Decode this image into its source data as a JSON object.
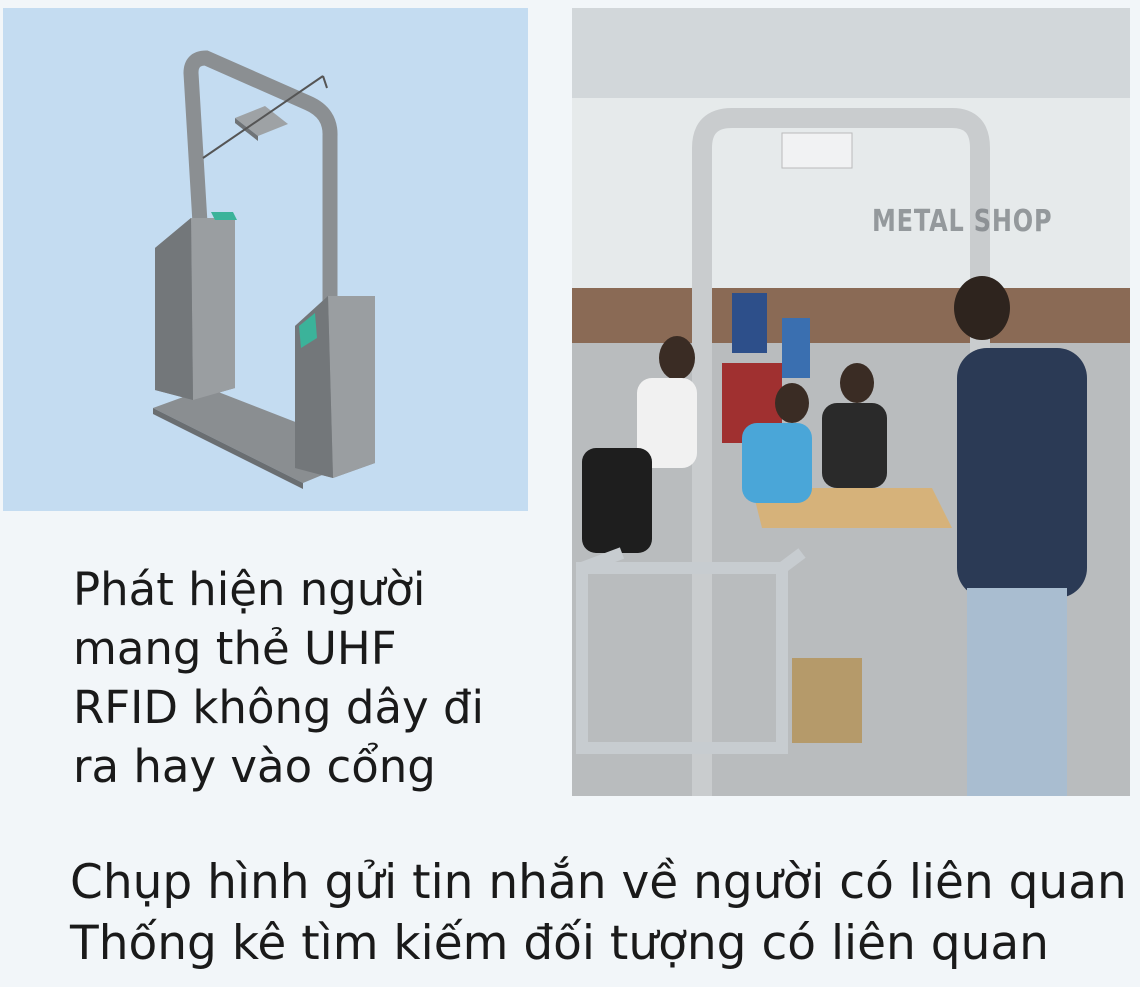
{
  "description_lines": [
    "Phát hiện người",
    "mang thẻ UHF",
    "RFID không dây đi",
    "ra hay vào cổng"
  ],
  "features": [
    "Chụp hình gửi tin nhắn về người có liên quan",
    "Thống kê tìm kiếm đối tượng có liên quan"
  ],
  "photo": {
    "watermark": "METAL SHOP"
  },
  "colors": {
    "render_background": "#c4dcf1",
    "page_background": "#f2f6f9",
    "gate_body": "#7e8285",
    "gate_accent": "#3bb39a"
  }
}
